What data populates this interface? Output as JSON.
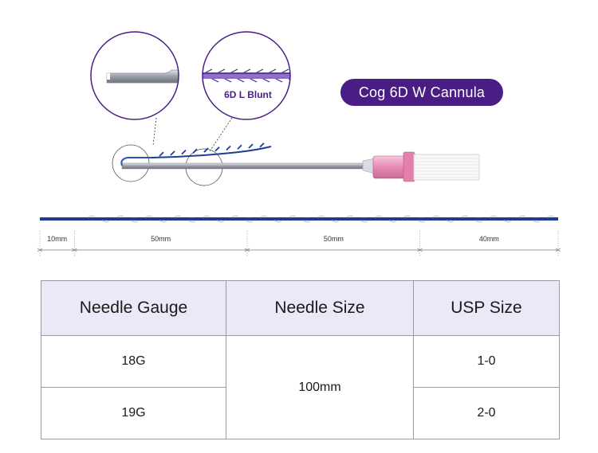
{
  "product": {
    "title": "Cog 6D W Cannula",
    "detail_label": "6D L Blunt",
    "brand_color": "#4a1d84",
    "thread_color": "#1e3c96"
  },
  "dimensions": {
    "segments": [
      {
        "label": "10mm",
        "mm": 10
      },
      {
        "label": "50mm",
        "mm": 50
      },
      {
        "label": "50mm",
        "mm": 50
      },
      {
        "label": "40mm",
        "mm": 40
      }
    ]
  },
  "table": {
    "headers": [
      "Needle Gauge",
      "Needle Size",
      "USP Size"
    ],
    "rows": [
      {
        "gauge": "18G",
        "usp": "1-0"
      },
      {
        "gauge": "19G",
        "usp": "2-0"
      }
    ],
    "needle_size": "100mm"
  }
}
